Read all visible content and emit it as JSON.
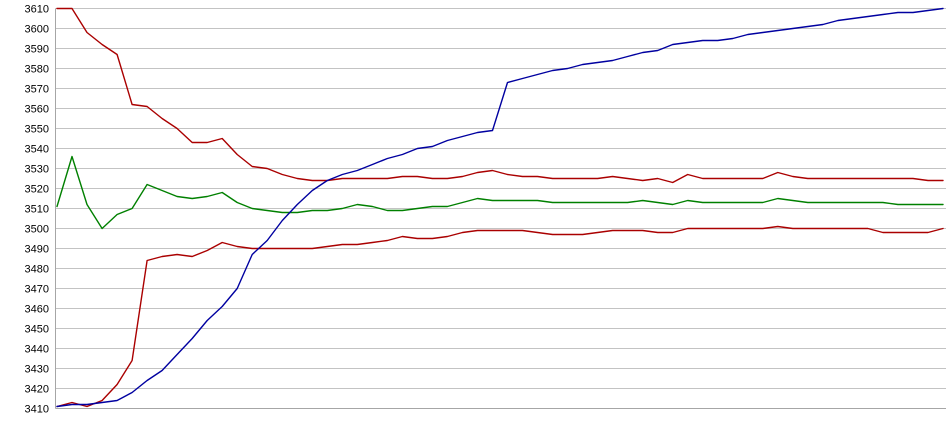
{
  "page": {
    "background": "#FFFFFF"
  },
  "chart_data": {
    "type": "line",
    "title": "",
    "xlabel": "",
    "ylabel": "",
    "legend": "none",
    "grid": "horizontal",
    "x_axis": {
      "labels_visible": false
    },
    "y_axis": {
      "min": 3410,
      "max": 3610,
      "tick_step": 10,
      "ticks": [
        3610,
        3600,
        3590,
        3580,
        3570,
        3560,
        3550,
        3540,
        3530,
        3520,
        3510,
        3500,
        3490,
        3480,
        3470,
        3460,
        3450,
        3440,
        3430,
        3420,
        3410
      ]
    },
    "colors": {
      "grid_line": "#C3C3C3",
      "axis_line": "#A6A6A6",
      "tick_text": "#000000",
      "red_series": "#AA0000",
      "green_series": "#008000",
      "blue_series": "#0000A0"
    },
    "series": [
      {
        "name": "red-upper-descending",
        "color": "#AA0000",
        "values": [
          3610,
          3610,
          3598,
          3592,
          3587,
          3562,
          3561,
          3555,
          3550,
          3543,
          3543,
          3545,
          3537,
          3531,
          3530,
          3527,
          3525,
          3524,
          3524,
          3525,
          3525,
          3525,
          3525,
          3526,
          3526,
          3525,
          3525,
          3526,
          3528,
          3529,
          3527,
          3526,
          3526,
          3525,
          3525,
          3525,
          3525,
          3526,
          3525,
          3524,
          3525,
          3523,
          3527,
          3525,
          3525,
          3525,
          3525,
          3525,
          3528,
          3526,
          3525,
          3525,
          3525,
          3525,
          3525,
          3525,
          3525,
          3525,
          3524,
          3524
        ]
      },
      {
        "name": "green-average",
        "color": "#008000",
        "values": [
          3511,
          3536,
          3512,
          3500,
          3507,
          3510,
          3522,
          3519,
          3516,
          3515,
          3516,
          3518,
          3513,
          3510,
          3509,
          3508,
          3508,
          3509,
          3509,
          3510,
          3512,
          3511,
          3509,
          3509,
          3510,
          3511,
          3511,
          3513,
          3515,
          3514,
          3514,
          3514,
          3514,
          3513,
          3513,
          3513,
          3513,
          3513,
          3513,
          3514,
          3513,
          3512,
          3514,
          3513,
          3513,
          3513,
          3513,
          3513,
          3515,
          3514,
          3513,
          3513,
          3513,
          3513,
          3513,
          3513,
          3512,
          3512,
          3512,
          3512
        ]
      },
      {
        "name": "red-lower-ascending",
        "color": "#AA0000",
        "values": [
          3411,
          3413,
          3411,
          3414,
          3422,
          3434,
          3484,
          3486,
          3487,
          3486,
          3489,
          3493,
          3491,
          3490,
          3490,
          3490,
          3490,
          3490,
          3491,
          3492,
          3492,
          3493,
          3494,
          3496,
          3495,
          3495,
          3496,
          3498,
          3499,
          3499,
          3499,
          3499,
          3498,
          3497,
          3497,
          3497,
          3498,
          3499,
          3499,
          3499,
          3498,
          3498,
          3500,
          3500,
          3500,
          3500,
          3500,
          3500,
          3501,
          3500,
          3500,
          3500,
          3500,
          3500,
          3500,
          3498,
          3498,
          3498,
          3498,
          3500
        ]
      },
      {
        "name": "blue-ascending",
        "color": "#0000A0",
        "values": [
          3411,
          3412,
          3412,
          3413,
          3414,
          3418,
          3424,
          3429,
          3437,
          3445,
          3454,
          3461,
          3470,
          3487,
          3494,
          3504,
          3512,
          3519,
          3524,
          3527,
          3529,
          3532,
          3535,
          3537,
          3540,
          3541,
          3544,
          3546,
          3548,
          3549,
          3573,
          3575,
          3577,
          3579,
          3580,
          3582,
          3583,
          3584,
          3586,
          3588,
          3589,
          3592,
          3593,
          3594,
          3594,
          3595,
          3597,
          3598,
          3599,
          3600,
          3601,
          3602,
          3604,
          3605,
          3606,
          3607,
          3608,
          3608,
          3609,
          3610
        ]
      }
    ]
  }
}
